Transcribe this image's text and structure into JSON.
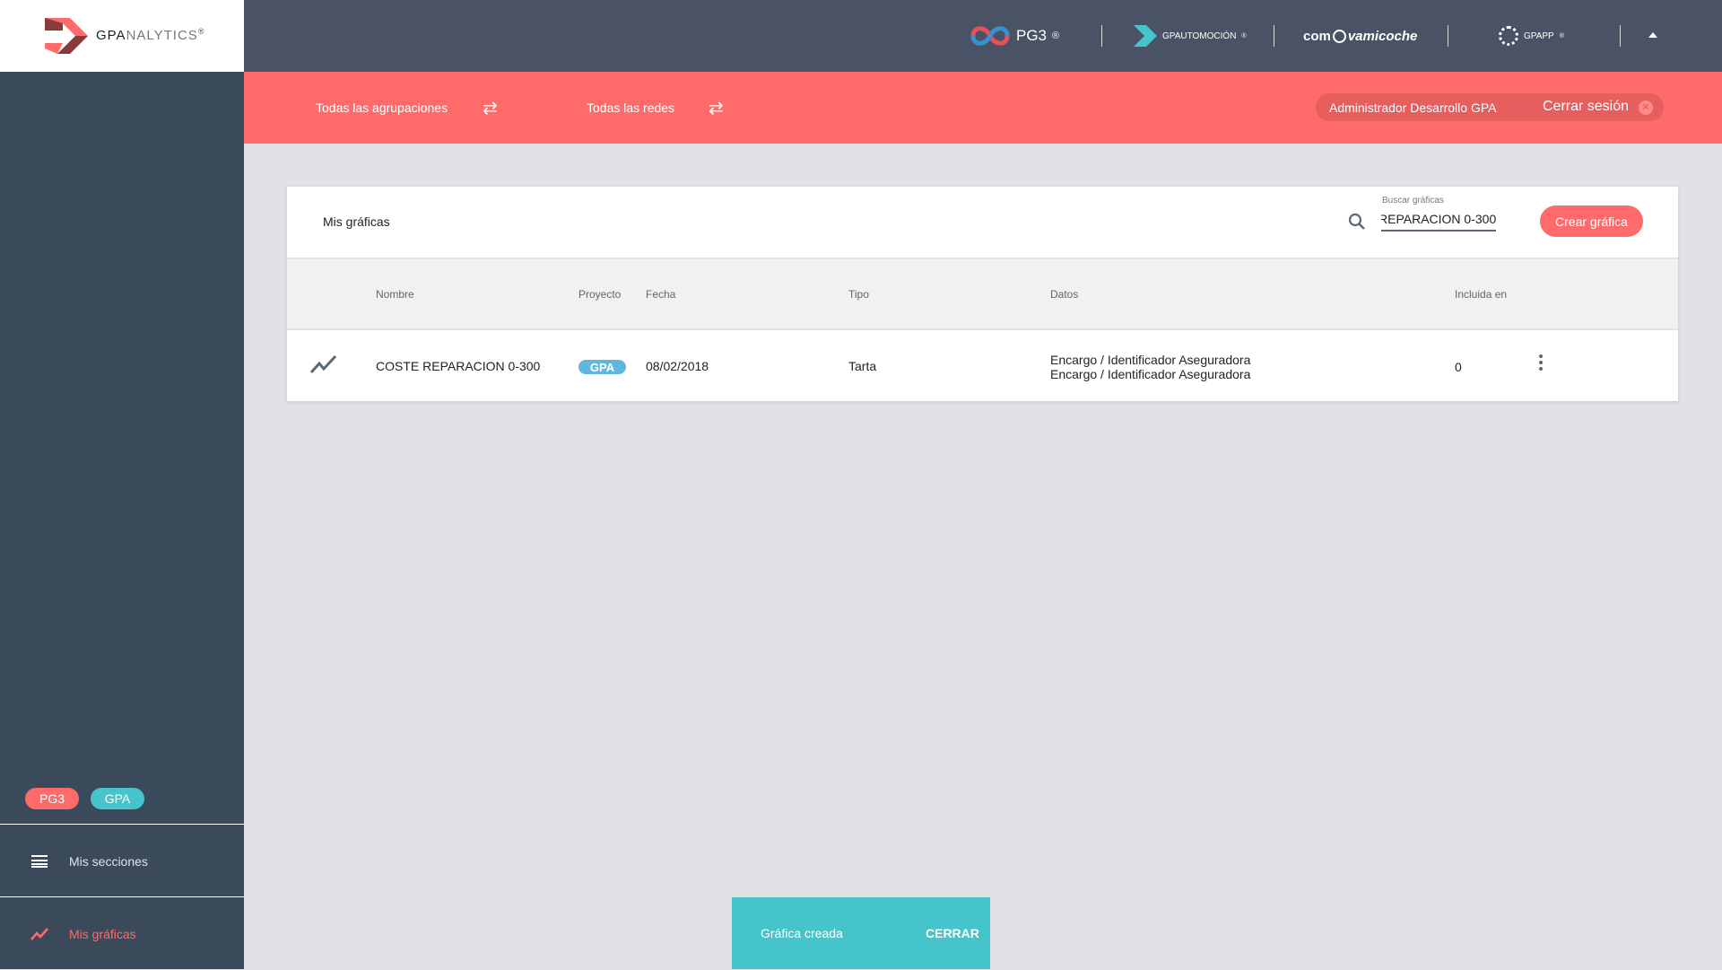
{
  "logo": {
    "text_bold": "GPA",
    "text_light": "NALYTICS",
    "reg": "®"
  },
  "topbar": {
    "brands": [
      {
        "name": "PG3",
        "reg": "®"
      },
      {
        "name": "GPAUTOMOCIÓN",
        "reg": "®"
      },
      {
        "name_a": "com",
        "name_b": "vamicoche"
      },
      {
        "name": "GPAPP",
        "reg": "®"
      }
    ],
    "caret_icon": "caret-up-icon"
  },
  "filters": {
    "groupings": "Todas las agrupaciones",
    "networks": "Todas las redes"
  },
  "user": {
    "name": "Administrador Desarrollo GPA",
    "logout": "Cerrar sesión"
  },
  "card": {
    "title": "Mis gráficas",
    "search_label": "Buscar gráficas",
    "search_value": "REPARACION 0-300",
    "create_button": "Crear gráfica",
    "columns": [
      "Nombre",
      "Proyecto",
      "Fecha",
      "Tipo",
      "Datos",
      "Incluida en"
    ],
    "rows": [
      {
        "name": "COSTE REPARACION 0-300",
        "project": "GPA",
        "date": "08/02/2018",
        "type": "Tarta",
        "data": [
          "Encargo / Identificador Aseguradora",
          "Encargo / Identificador Aseguradora"
        ],
        "included": "0"
      }
    ]
  },
  "sidebar": {
    "badges": [
      {
        "label": "PG3",
        "color": "#ff6b6b"
      },
      {
        "label": "GPA",
        "color": "#45c4cb"
      }
    ],
    "items": [
      {
        "label": "Mis secciones",
        "icon": "list-icon"
      },
      {
        "label": "Mis gráficas",
        "icon": "trending-icon",
        "active": true
      }
    ]
  },
  "toast": {
    "message": "Gráfica creada",
    "action": "CERRAR"
  },
  "colors": {
    "accent": "#ff6b6b",
    "teal": "#45c4cb",
    "sidebar": "#3a4a5b",
    "topbar": "#4a5366"
  }
}
